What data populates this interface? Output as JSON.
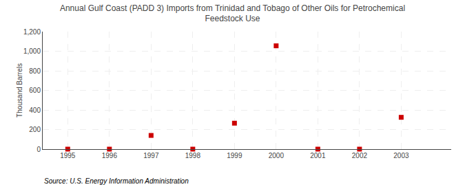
{
  "chart_data": {
    "type": "scatter",
    "title": "Annual Gulf Coast (PADD 3) Imports from Trinidad and Tobago of Other Oils for Petrochemical\nFeedstock Use",
    "ylabel": "Thousand Barrels",
    "annotations": [
      "Source: U.S. Energy Information Administration"
    ],
    "x": [
      1995,
      1996,
      1997,
      1998,
      1999,
      2000,
      2001,
      2002,
      2003
    ],
    "values": [
      0,
      0,
      140,
      0,
      265,
      1055,
      0,
      0,
      325
    ],
    "color": "#cc0000",
    "marker": "square",
    "xlim": [
      1994.4,
      2004.2
    ],
    "xticks": [
      1995,
      1996,
      1997,
      1998,
      1999,
      2000,
      2001,
      2002,
      2003
    ],
    "ylim": [
      0,
      1200
    ],
    "yticks": [
      0,
      200,
      400,
      600,
      800,
      {
        "value": 1000,
        "label": "1,000"
      },
      {
        "value": 1200,
        "label": "1,200"
      }
    ],
    "grid": true
  }
}
